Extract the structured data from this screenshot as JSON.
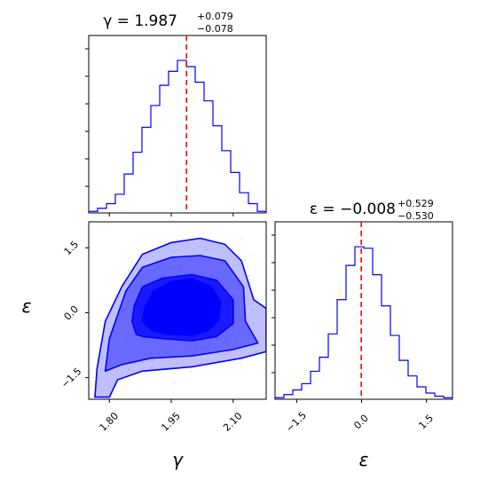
{
  "chart_data": [
    {
      "panel": "gamma-marginal",
      "type": "histogram",
      "title_base": "γ = 1.987",
      "title_sup": "+0.079",
      "title_sub": "−0.078",
      "xlim": [
        1.75,
        2.18
      ],
      "x_ticks": [
        1.8,
        1.95,
        2.1
      ],
      "x_tick_labels": [
        "1.80",
        "1.95",
        "2.10"
      ],
      "bin_edges": [
        1.75,
        1.7715,
        1.793,
        1.8145,
        1.836,
        1.8575,
        1.879,
        1.9005,
        1.922,
        1.9435,
        1.965,
        1.9865,
        2.008,
        2.0295,
        2.051,
        2.0725,
        2.094,
        2.1155,
        2.137,
        2.1585,
        2.18
      ],
      "counts": [
        0.01,
        0.03,
        0.06,
        0.12,
        0.25,
        0.39,
        0.55,
        0.69,
        0.82,
        0.91,
        0.98,
        0.94,
        0.84,
        0.72,
        0.56,
        0.4,
        0.26,
        0.13,
        0.06,
        0.01
      ],
      "ymax": 1.14,
      "median_line": 1.987,
      "colors": {
        "hist": "#0000ff",
        "median": "#ff0000"
      }
    },
    {
      "panel": "joint-gamma-epsilon",
      "type": "contour",
      "xlim": [
        1.75,
        2.18
      ],
      "ylim": [
        -2.0,
        2.1
      ],
      "x_ticks": [
        1.8,
        1.95,
        2.1
      ],
      "x_tick_labels": [
        "1.80",
        "1.95",
        "2.10"
      ],
      "y_ticks": [
        -1.5,
        0.0,
        1.5
      ],
      "y_tick_labels": [
        "−1.5",
        "0.0",
        "1.5"
      ],
      "xlabel": "γ",
      "ylabel": "ε",
      "contours": [
        {
          "level": "outer",
          "fill_opacity": 0.25,
          "points": [
            [
              1.765,
              -1.95
            ],
            [
              1.77,
              -1.3
            ],
            [
              1.79,
              -0.2
            ],
            [
              1.83,
              0.6
            ],
            [
              1.88,
              1.35
            ],
            [
              1.95,
              1.62
            ],
            [
              2.02,
              1.72
            ],
            [
              2.08,
              1.58
            ],
            [
              2.12,
              1.2
            ],
            [
              2.15,
              0.3
            ],
            [
              2.18,
              0.1
            ],
            [
              2.18,
              -0.9
            ],
            [
              2.12,
              -1.05
            ],
            [
              2.0,
              -1.25
            ],
            [
              1.88,
              -1.35
            ],
            [
              1.82,
              -1.55
            ],
            [
              1.8,
              -1.95
            ]
          ]
        },
        {
          "level": "middle",
          "fill_opacity": 0.45,
          "points": [
            [
              1.79,
              -1.35
            ],
            [
              1.8,
              -0.6
            ],
            [
              1.84,
              0.5
            ],
            [
              1.88,
              1.05
            ],
            [
              1.95,
              1.28
            ],
            [
              2.02,
              1.32
            ],
            [
              2.08,
              1.2
            ],
            [
              2.125,
              0.6
            ],
            [
              2.13,
              -0.2
            ],
            [
              2.16,
              -0.7
            ],
            [
              2.1,
              -0.85
            ],
            [
              2.0,
              -1.0
            ],
            [
              1.9,
              -1.05
            ],
            [
              1.83,
              -1.2
            ]
          ]
        },
        {
          "level": "inner",
          "fill_opacity": 0.75,
          "points": [
            [
              1.86,
              0.15
            ],
            [
              1.88,
              0.6
            ],
            [
              1.93,
              0.8
            ],
            [
              2.0,
              0.88
            ],
            [
              2.06,
              0.75
            ],
            [
              2.1,
              0.3
            ],
            [
              2.1,
              -0.25
            ],
            [
              2.06,
              -0.55
            ],
            [
              2.0,
              -0.65
            ],
            [
              1.93,
              -0.6
            ],
            [
              1.88,
              -0.55
            ],
            [
              1.865,
              -0.5
            ],
            [
              1.855,
              -0.2
            ]
          ]
        },
        {
          "level": "core",
          "fill_opacity": 1.0,
          "points": [
            [
              1.885,
              0.1
            ],
            [
              1.905,
              0.48
            ],
            [
              1.95,
              0.72
            ],
            [
              2.0,
              0.78
            ],
            [
              2.045,
              0.62
            ],
            [
              2.07,
              0.25
            ],
            [
              2.065,
              -0.15
            ],
            [
              2.04,
              -0.42
            ],
            [
              2.0,
              -0.52
            ],
            [
              1.94,
              -0.5
            ],
            [
              1.905,
              -0.42
            ],
            [
              1.88,
              -0.2
            ]
          ]
        }
      ],
      "colors": {
        "fill": "#0000ff",
        "line": "#0000ff",
        "points": "#0000ff"
      }
    },
    {
      "panel": "epsilon-marginal",
      "type": "histogram",
      "title_base": "ε = −0.008",
      "title_sup": "+0.529",
      "title_sub": "−0.530",
      "xlim": [
        -2.0,
        2.1
      ],
      "x_ticks": [
        -1.5,
        0.0,
        1.5
      ],
      "x_tick_labels": [
        "−1.5",
        "0.0",
        "1.5"
      ],
      "xlabel": "ε",
      "bin_edges": [
        -2.0,
        -1.795,
        -1.59,
        -1.385,
        -1.18,
        -0.975,
        -0.77,
        -0.565,
        -0.36,
        -0.155,
        0.05,
        0.255,
        0.46,
        0.665,
        0.87,
        1.075,
        1.28,
        1.485,
        1.69,
        1.895,
        2.1
      ],
      "counts": [
        0.01,
        0.03,
        0.06,
        0.1,
        0.18,
        0.27,
        0.42,
        0.64,
        0.86,
        0.98,
        0.97,
        0.8,
        0.6,
        0.41,
        0.25,
        0.15,
        0.08,
        0.04,
        0.02,
        0.01
      ],
      "ymax": 1.14,
      "median_line": -0.008,
      "colors": {
        "hist": "#0000ff",
        "median": "#ff0000"
      }
    }
  ]
}
